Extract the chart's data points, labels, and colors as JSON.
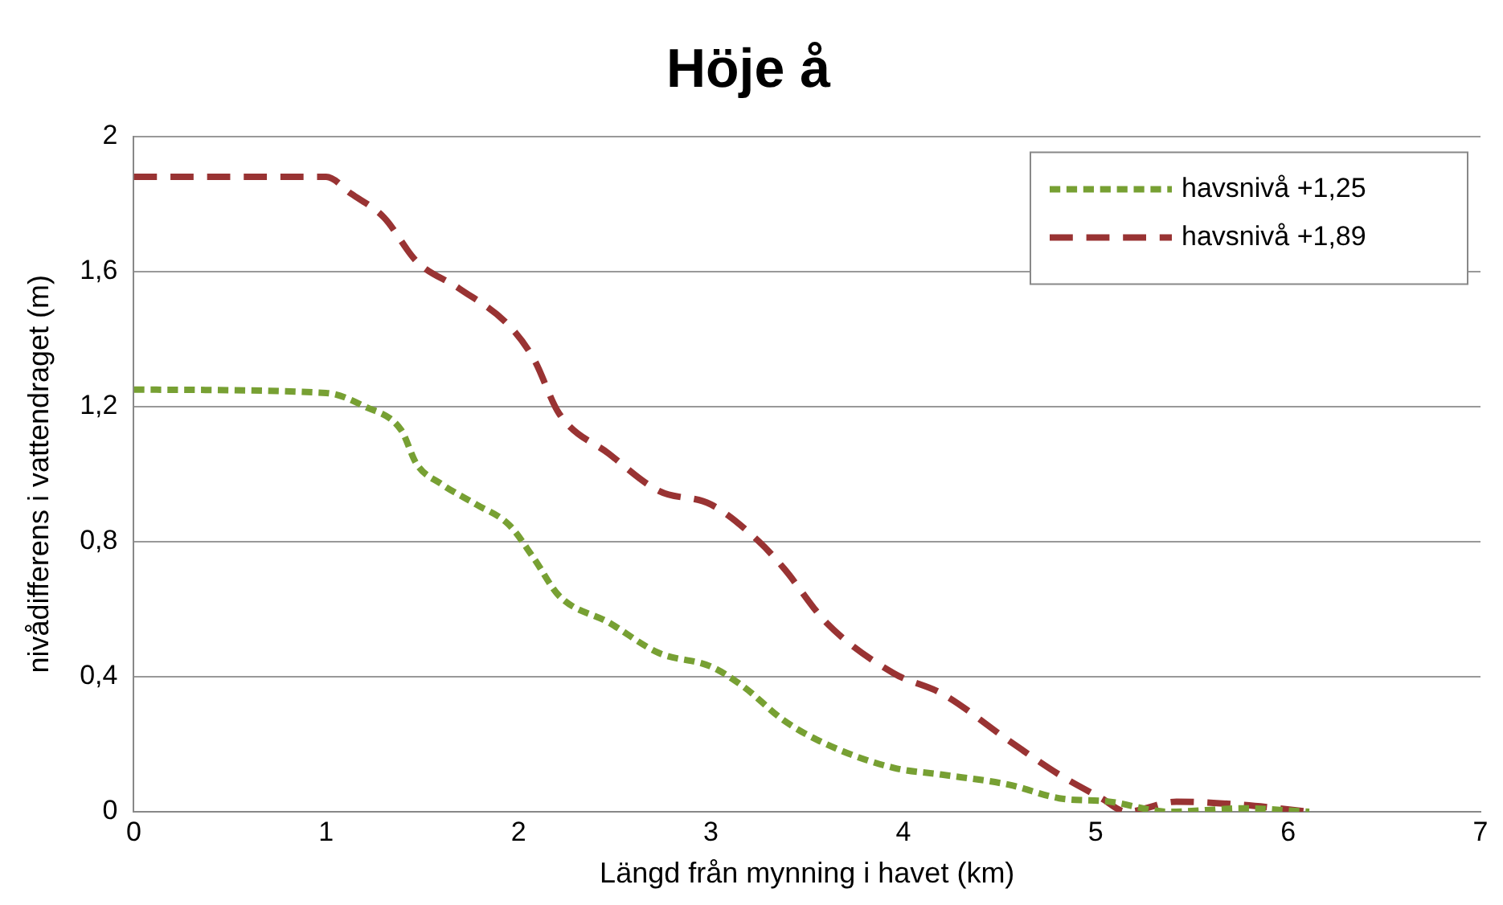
{
  "chart_data": {
    "type": "line",
    "title": "Höje å",
    "xlabel": "Längd från mynning i havet (km)",
    "ylabel": "nivådifferens i vattendraget (m)",
    "xlim": [
      0,
      7
    ],
    "xticks": [
      0,
      1,
      2,
      3,
      4,
      5,
      6,
      7
    ],
    "ylim": [
      0,
      2
    ],
    "yticks": [
      {
        "value": 0,
        "label": "0"
      },
      {
        "value": 0.4,
        "label": "0,4"
      },
      {
        "value": 0.8,
        "label": "0,8"
      },
      {
        "value": 1.2,
        "label": "1,2"
      },
      {
        "value": 1.6,
        "label": "1,6"
      },
      {
        "value": 2,
        "label": "2"
      }
    ],
    "grid": "y",
    "legend": "top right",
    "marker": "none",
    "line_style": "dashed",
    "series": [
      {
        "name": "havsnivå +1,25",
        "color": "#77a033",
        "x": [
          0,
          1,
          1.2,
          1.39,
          1.47,
          1.6,
          1.78,
          1.95,
          2.08,
          2.21,
          2.47,
          2.73,
          3.0,
          3.17,
          3.38,
          3.6,
          3.95,
          4.2,
          4.55,
          4.81,
          5.07,
          5.38,
          5.77,
          6.11
        ],
        "values": [
          1.25,
          1.24,
          1.2,
          1.13,
          1.03,
          0.97,
          0.91,
          0.85,
          0.75,
          0.64,
          0.56,
          0.47,
          0.43,
          0.37,
          0.27,
          0.2,
          0.13,
          0.11,
          0.08,
          0.04,
          0.03,
          0,
          0.01,
          0
        ]
      },
      {
        "name": "havsnivå +1,89",
        "color": "#993333",
        "x": [
          0,
          1,
          1.13,
          1.3,
          1.47,
          1.69,
          1.95,
          2.08,
          2.21,
          2.47,
          2.73,
          3.0,
          3.25,
          3.38,
          3.6,
          3.95,
          4.2,
          4.55,
          4.81,
          5.03,
          5.16,
          5.42,
          5.77,
          6.11
        ],
        "values": [
          1.88,
          1.88,
          1.83,
          1.76,
          1.63,
          1.55,
          1.44,
          1.34,
          1.18,
          1.06,
          0.95,
          0.91,
          0.8,
          0.72,
          0.56,
          0.41,
          0.35,
          0.21,
          0.11,
          0.04,
          0,
          0.03,
          0.02,
          0
        ]
      }
    ]
  }
}
